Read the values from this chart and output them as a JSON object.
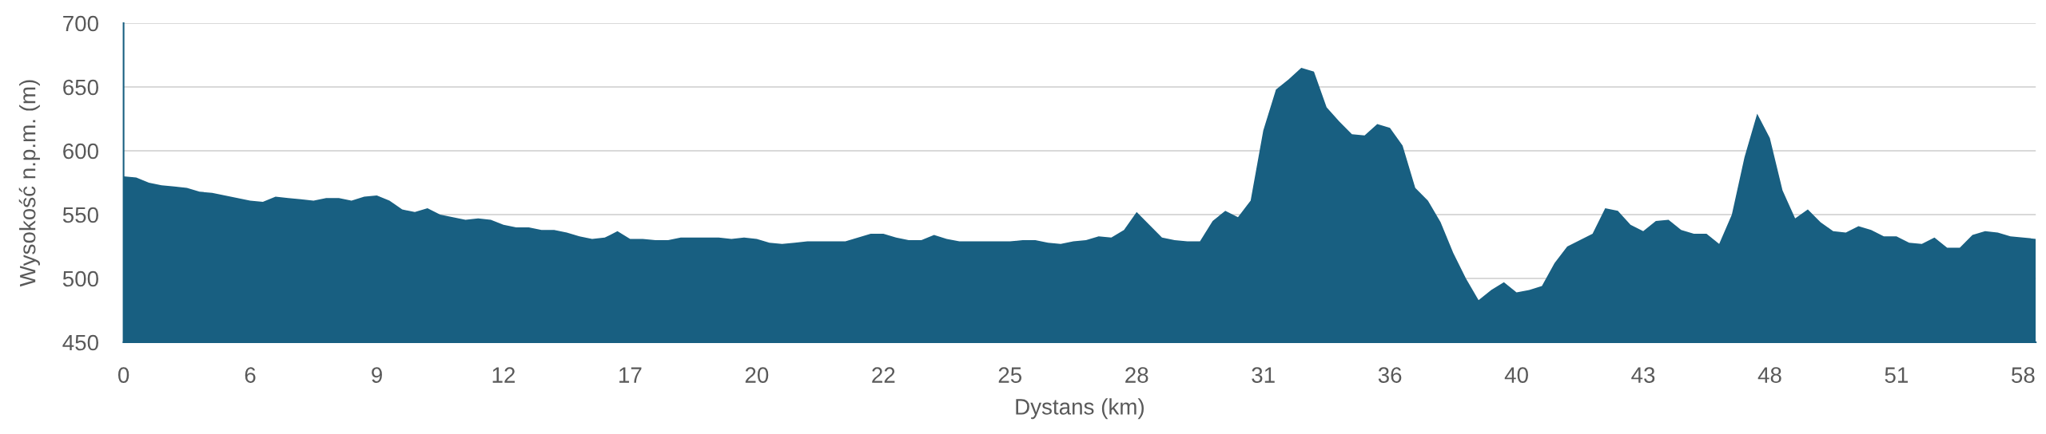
{
  "chart_data": {
    "type": "area",
    "xlabel": "Dystans (km)",
    "ylabel": "Wysokość n.p.m. (m)",
    "categories": [
      "0",
      null,
      null,
      null,
      null,
      null,
      null,
      null,
      null,
      null,
      "6",
      null,
      null,
      null,
      null,
      null,
      null,
      null,
      null,
      null,
      "9",
      null,
      null,
      null,
      null,
      null,
      null,
      null,
      null,
      null,
      "12",
      null,
      null,
      null,
      null,
      null,
      null,
      null,
      null,
      null,
      "17",
      null,
      null,
      null,
      null,
      null,
      null,
      null,
      null,
      null,
      "20",
      null,
      null,
      null,
      null,
      null,
      null,
      null,
      null,
      null,
      "22",
      null,
      null,
      null,
      null,
      null,
      null,
      null,
      null,
      null,
      "25",
      null,
      null,
      null,
      null,
      null,
      null,
      null,
      null,
      null,
      "28",
      null,
      null,
      null,
      null,
      null,
      null,
      null,
      null,
      null,
      "31",
      null,
      null,
      null,
      null,
      null,
      null,
      null,
      null,
      null,
      "36",
      null,
      null,
      null,
      null,
      null,
      null,
      null,
      null,
      null,
      "40",
      null,
      null,
      null,
      null,
      null,
      null,
      null,
      null,
      null,
      "43",
      null,
      null,
      null,
      null,
      null,
      null,
      null,
      null,
      null,
      "48",
      null,
      null,
      null,
      null,
      null,
      null,
      null,
      null,
      null,
      "51",
      null,
      null,
      null,
      null,
      null,
      null,
      null,
      null,
      null,
      "58",
      null
    ],
    "series": [
      {
        "color": "#185f81",
        "values": [
          580,
          579,
          575,
          573,
          572,
          571,
          568,
          567,
          565,
          563,
          561,
          560,
          564,
          563,
          562,
          561,
          563,
          563,
          561,
          564,
          565,
          561,
          554,
          552,
          555,
          550,
          548,
          546,
          547,
          546,
          542,
          540,
          540,
          538,
          538,
          536,
          533,
          531,
          532,
          537,
          531,
          531,
          530,
          530,
          532,
          532,
          532,
          532,
          531,
          532,
          531,
          528,
          527,
          528,
          529,
          529,
          529,
          529,
          532,
          535,
          535,
          532,
          530,
          530,
          534,
          531,
          529,
          529,
          529,
          529,
          529,
          530,
          530,
          528,
          527,
          529,
          530,
          533,
          532,
          538,
          552,
          542,
          532,
          530,
          529,
          529,
          545,
          553,
          548,
          561,
          616,
          648,
          656,
          665,
          662,
          634,
          623,
          613,
          612,
          621,
          618,
          604,
          571,
          561,
          544,
          520,
          500,
          483,
          491,
          497,
          489,
          491,
          494,
          512,
          525,
          530,
          535,
          555,
          553,
          542,
          537,
          545,
          546,
          538,
          535,
          535,
          527,
          550,
          595,
          629,
          610,
          569,
          547,
          554,
          544,
          537,
          536,
          541,
          538,
          533,
          533,
          528,
          527,
          532,
          524,
          524,
          534,
          537,
          536,
          533,
          532,
          531
        ]
      }
    ],
    "ylim": [
      450,
      700
    ],
    "yticks": [
      450,
      500,
      550,
      600,
      650,
      700
    ],
    "grid": "y"
  }
}
